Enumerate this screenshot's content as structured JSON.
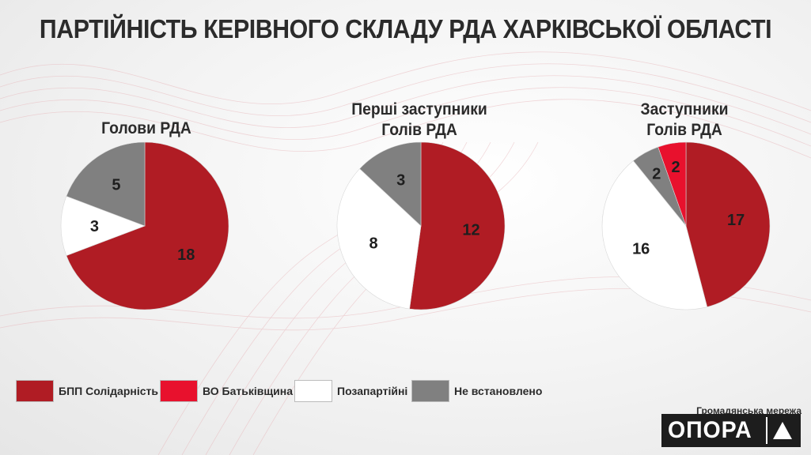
{
  "title": "ПАРТІЙНІСТЬ КЕРІВНОГО СКЛАДУ РДА ХАРКІВСЬКОЇ ОБЛАСТІ",
  "chart_data": [
    {
      "type": "pie",
      "title_lines": [
        "Голови РДА"
      ],
      "slices": [
        {
          "category": "БПП Солідарність",
          "value": 18
        },
        {
          "category": "Позапартійні",
          "value": 3
        },
        {
          "category": "Не встановлено",
          "value": 5
        }
      ]
    },
    {
      "type": "pie",
      "title_lines": [
        "Перші заступники",
        "Голів РДА"
      ],
      "slices": [
        {
          "category": "БПП Солідарність",
          "value": 12
        },
        {
          "category": "Позапартійні",
          "value": 8
        },
        {
          "category": "Не встановлено",
          "value": 3
        }
      ]
    },
    {
      "type": "pie",
      "title_lines": [
        "Заступники",
        "Голів РДА"
      ],
      "slices": [
        {
          "category": "БПП Солідарність",
          "value": 17
        },
        {
          "category": "Позапартійні",
          "value": 16
        },
        {
          "category": "Не встановлено",
          "value": 2
        },
        {
          "category": "ВО Батьківщина",
          "value": 2
        }
      ]
    }
  ],
  "legend": [
    {
      "label": "БПП Солідарність",
      "color": "#b01c24"
    },
    {
      "label": "ВО Батьківщина",
      "color": "#e8112d"
    },
    {
      "label": "Позапартійні",
      "color": "#ffffff"
    },
    {
      "label": "Не встановлено",
      "color": "#808080"
    }
  ],
  "brand": {
    "caption": "Громадянська мережа",
    "name": "ОПОРА",
    "icon": "triangle-logo-icon"
  }
}
